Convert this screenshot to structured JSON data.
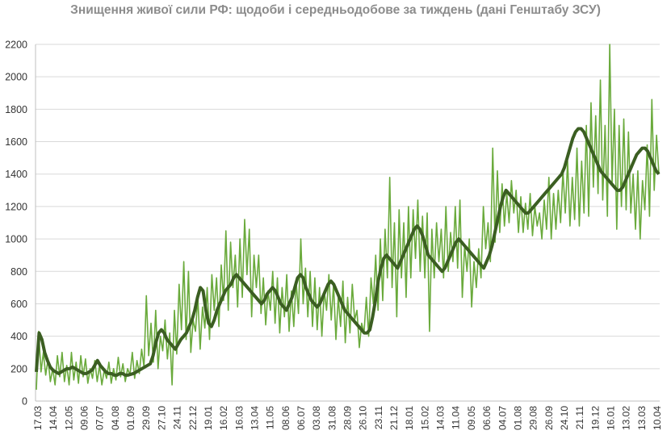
{
  "chart_data": {
    "type": "line",
    "title": "Знищення живої сили РФ: щодоби і середньодобове за тиждень (дані Генштабу ЗСУ)",
    "xlabel": "",
    "ylabel": "",
    "ylim": [
      0,
      2200
    ],
    "yticks": [
      0,
      200,
      400,
      600,
      800,
      1000,
      1200,
      1400,
      1600,
      1800,
      2000,
      2200
    ],
    "grid": true,
    "x_ticks": [
      "17.03",
      "14.04",
      "12.05",
      "09.06",
      "07.07",
      "04.08",
      "01.09",
      "29.09",
      "27.10",
      "24.11",
      "22.12",
      "19.01",
      "16.02",
      "16.03",
      "13.04",
      "11.05",
      "08.06",
      "06.07",
      "03.08",
      "31.08",
      "28.09",
      "26.10",
      "23.11",
      "21.12",
      "18.01",
      "15.02",
      "14.03",
      "11.04",
      "09.05",
      "06.06",
      "04.07",
      "01.08",
      "29.08",
      "26.09",
      "24.10",
      "21.11",
      "19.12",
      "16.01",
      "13.02",
      "13.03",
      "10.04"
    ],
    "colors": {
      "daily": "#6aaa3c",
      "weekly": "#3b5e22",
      "grid": "#d9d9d9"
    },
    "series": [
      {
        "key": "daily",
        "values": [
          70,
          430,
          180,
          300,
          160,
          260,
          120,
          200,
          100,
          280,
          150,
          300,
          120,
          220,
          100,
          300,
          130,
          240,
          110,
          280,
          150,
          260,
          110,
          200,
          140,
          250,
          120,
          220,
          100,
          190,
          140,
          240,
          110,
          200,
          130,
          270,
          150,
          230,
          120,
          200,
          160,
          300,
          140,
          250,
          170,
          320,
          210,
          650,
          280,
          480,
          240,
          560,
          200,
          400,
          310,
          500,
          260,
          420,
          100,
          560,
          290,
          720,
          440,
          860,
          380,
          800,
          300,
          500,
          430,
          640,
          320,
          580,
          450,
          700,
          380,
          780,
          560,
          760,
          460,
          840,
          620,
          1050,
          560,
          980,
          700,
          900,
          580,
          1000,
          640,
          1120,
          780,
          1060,
          520,
          900,
          700,
          900,
          540,
          760,
          470,
          680,
          560,
          800,
          480,
          760,
          420,
          700,
          520,
          780,
          430,
          680,
          460,
          740,
          540,
          1000,
          600,
          820,
          520,
          800,
          460,
          760,
          440,
          700,
          400,
          680,
          560,
          780,
          500,
          720,
          380,
          640,
          460,
          740,
          360,
          640,
          420,
          720,
          500,
          560,
          330,
          480,
          420,
          640,
          400,
          760,
          600,
          900,
          560,
          1000,
          620,
          1060,
          760,
          1380,
          700,
          1100,
          520,
          1180,
          760,
          1100,
          640,
          1200,
          760,
          1180,
          880,
          1240,
          800,
          1140,
          760,
          1160,
          430,
          1060,
          760,
          1100,
          860,
          1060,
          760,
          1200,
          800,
          1040,
          860,
          1200,
          820,
          1240,
          640,
          960,
          800,
          1000,
          580,
          860,
          700,
          940,
          760,
          1200,
          940,
          1100,
          860,
          1560,
          980,
          1420,
          1040,
          1340,
          1080,
          1280,
          1100,
          1360,
          1160,
          1300,
          1040,
          1260,
          1040,
          1220,
          1060,
          1280,
          1020,
          1200,
          1080,
          1160,
          1000,
          1240,
          1060,
          1380,
          1000,
          1280,
          1060,
          1300,
          1100,
          1420,
          1160,
          1480,
          1080,
          1380,
          1120,
          1560,
          1080,
          1480,
          1160,
          1700,
          1140,
          1840,
          1320,
          1760,
          1280,
          1980,
          1240,
          1700,
          1140,
          2200,
          1340,
          1800,
          1060,
          1700,
          1200,
          1740,
          1180,
          1660,
          1160,
          1400,
          1060,
          1420,
          1000,
          1360,
          1180,
          1580,
          1140,
          1860,
          1300,
          1640,
          1400
        ]
      },
      {
        "key": "weekly",
        "values": [
          180,
          420,
          380,
          300,
          250,
          210,
          190,
          180,
          170,
          180,
          190,
          200,
          200,
          210,
          200,
          190,
          180,
          170,
          170,
          180,
          190,
          220,
          250,
          220,
          200,
          180,
          170,
          170,
          160,
          160,
          170,
          170,
          160,
          160,
          165,
          170,
          180,
          190,
          200,
          210,
          220,
          230,
          280,
          360,
          420,
          440,
          420,
          380,
          360,
          340,
          320,
          350,
          380,
          400,
          420,
          460,
          500,
          560,
          640,
          700,
          680,
          560,
          480,
          460,
          500,
          560,
          600,
          640,
          680,
          700,
          720,
          760,
          780,
          760,
          740,
          720,
          700,
          680,
          660,
          640,
          620,
          600,
          620,
          660,
          680,
          700,
          680,
          640,
          600,
          580,
          560,
          600,
          640,
          700,
          760,
          780,
          760,
          700,
          660,
          620,
          600,
          580,
          600,
          640,
          680,
          720,
          740,
          720,
          680,
          640,
          600,
          560,
          540,
          520,
          500,
          480,
          460,
          440,
          420,
          420,
          440,
          520,
          620,
          740,
          820,
          880,
          900,
          880,
          860,
          840,
          820,
          860,
          900,
          940,
          980,
          1020,
          1060,
          1080,
          1060,
          1020,
          960,
          900,
          880,
          860,
          840,
          820,
          800,
          820,
          860,
          900,
          940,
          980,
          1000,
          980,
          960,
          940,
          920,
          900,
          880,
          860,
          840,
          820,
          860,
          900,
          960,
          1040,
          1120,
          1200,
          1260,
          1300,
          1280,
          1260,
          1240,
          1220,
          1200,
          1180,
          1160,
          1160,
          1180,
          1200,
          1220,
          1240,
          1260,
          1280,
          1300,
          1320,
          1340,
          1360,
          1380,
          1400,
          1440,
          1500,
          1560,
          1620,
          1660,
          1680,
          1680,
          1660,
          1620,
          1580,
          1540,
          1500,
          1460,
          1420,
          1400,
          1380,
          1360,
          1340,
          1320,
          1300,
          1300,
          1320,
          1360,
          1400,
          1440,
          1480,
          1520,
          1540,
          1560,
          1560,
          1540,
          1500,
          1460,
          1420,
          1400
        ]
      }
    ]
  }
}
